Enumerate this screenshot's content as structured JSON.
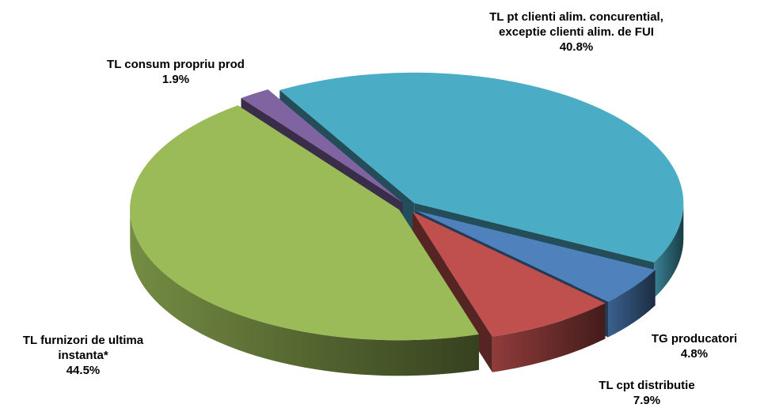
{
  "chart_data": {
    "type": "pie3d",
    "categories": [
      "TL pt clienti alim. concurential, exceptie clienti alim. de FUI",
      "TG producatori",
      "TL cpt distributie",
      "TL furnizori de ultima instanta*",
      "TL consum propriu prod"
    ],
    "values": [
      40.8,
      4.8,
      7.9,
      44.5,
      1.9
    ],
    "value_labels": [
      "40.8%",
      "4.8%",
      "7.9%",
      "44.5%",
      "1.9%"
    ],
    "colors": [
      "#4bacc6",
      "#4f81bd",
      "#c0504d",
      "#9bbb59",
      "#8064a2"
    ]
  }
}
